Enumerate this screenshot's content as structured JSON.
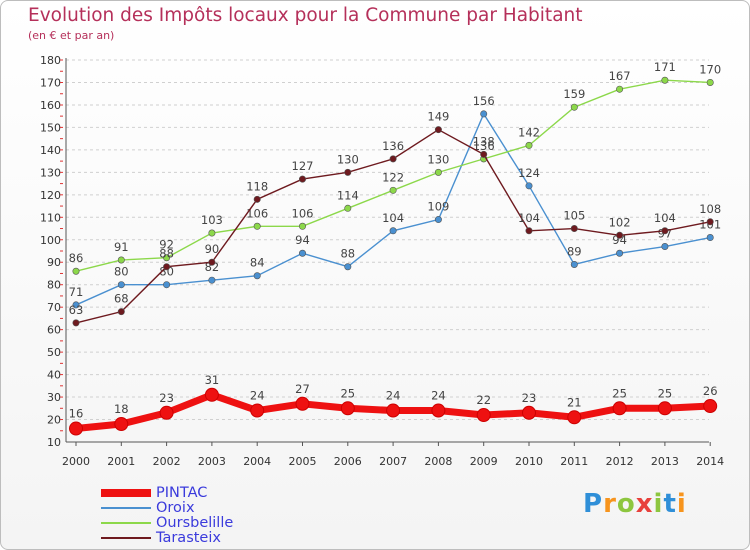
{
  "header": {
    "title": "Evolution des Impôts locaux pour la Commune par Habitant",
    "subtitle": "(en € et par an)"
  },
  "logo": {
    "letters": [
      "P",
      "r",
      "o",
      "x",
      "i",
      "t",
      "i"
    ],
    "colors": [
      "#2f8fd8",
      "#f7941d",
      "#8dc63f",
      "#e8413c",
      "#8dc63f",
      "#2f8fd8",
      "#f7941d"
    ]
  },
  "chart_data": {
    "type": "line",
    "title": "Evolution des Impôts locaux pour la Commune par Habitant",
    "subtitle": "(en € et par an)",
    "x": [
      "2000",
      "2001",
      "2002",
      "2003",
      "2004",
      "2005",
      "2006",
      "2007",
      "2008",
      "2009",
      "2010",
      "2011",
      "2012",
      "2013",
      "2014"
    ],
    "yticks": [
      10,
      20,
      30,
      40,
      50,
      60,
      70,
      80,
      90,
      100,
      110,
      120,
      130,
      140,
      150,
      160,
      170,
      180
    ],
    "ylim": [
      10,
      180
    ],
    "grid": "horizontal dashed",
    "legend_position": "bottom-left",
    "series": [
      {
        "name": "Oroix",
        "color": "#4a90d0",
        "values": [
          71,
          80,
          80,
          82,
          84,
          94,
          88,
          104,
          109,
          156,
          124,
          89,
          94,
          97,
          101
        ]
      },
      {
        "name": "Oursbelille",
        "color": "#8cd84a",
        "values": [
          86,
          91,
          92,
          103,
          106,
          106,
          114,
          122,
          130,
          136,
          142,
          159,
          167,
          171,
          170
        ]
      },
      {
        "name": "Tarasteix",
        "color": "#6e1a1f",
        "values": [
          63,
          68,
          88,
          90,
          118,
          127,
          130,
          136,
          149,
          138,
          104,
          105,
          102,
          104,
          108
        ]
      },
      {
        "name": "PINTAC",
        "color": "#ee1111",
        "values": [
          16,
          18,
          23,
          31,
          24,
          27,
          25,
          24,
          24,
          22,
          23,
          21,
          25,
          25,
          26
        ]
      }
    ],
    "legend_order": [
      "PINTAC",
      "Oroix",
      "Oursbelille",
      "Tarasteix"
    ]
  }
}
